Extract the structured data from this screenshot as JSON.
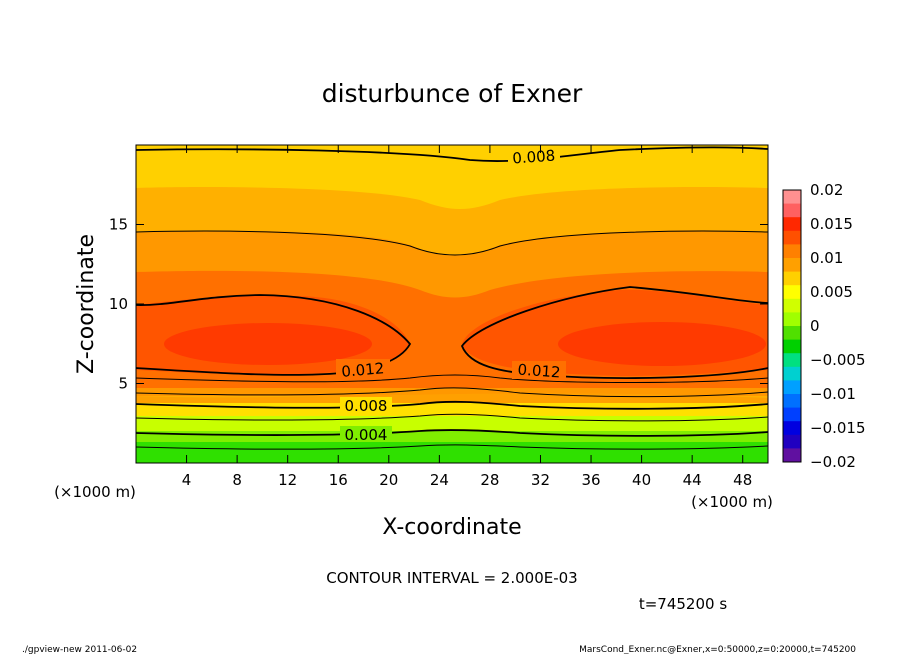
{
  "chart_data": {
    "type": "contour",
    "title": "disturbunce of Exner",
    "xlabel": "X-coordinate",
    "ylabel": "Z-coordinate",
    "x_unit": "(×1000 m)",
    "z_unit": "(×1000 m)",
    "xlim": [
      0,
      50
    ],
    "ylim": [
      0,
      20
    ],
    "x_ticks": [
      4,
      8,
      12,
      16,
      20,
      24,
      28,
      32,
      36,
      40,
      44,
      48
    ],
    "y_ticks": [
      5,
      10,
      15
    ],
    "contour_interval_text": "CONTOUR INTERVAL = 2.000E-03",
    "time_text": "t=745200 s",
    "contour_labels": [
      {
        "text": "0.008",
        "x": 32,
        "z": 19.0
      },
      {
        "text": "0.012",
        "x": 17.7,
        "z": 5.6
      },
      {
        "text": "0.012",
        "x": 31.8,
        "z": 5.5
      },
      {
        "text": "0.008",
        "x": 18.2,
        "z": 3.5
      },
      {
        "text": "0.004",
        "x": 18.2,
        "z": 1.7
      }
    ],
    "colorbar": {
      "ticks": [
        "0.02",
        "0.015",
        "0.01",
        "0.005",
        "0",
        "−0.005",
        "−0.01",
        "−0.015",
        "−0.02"
      ],
      "levels": [
        0.02,
        0.015,
        0.01,
        0.005,
        0,
        -0.005,
        -0.01,
        -0.015,
        -0.02
      ],
      "colors": [
        "#ff9090",
        "#ff6060",
        "#ff2800",
        "#ff5000",
        "#ff8000",
        "#ffa000",
        "#ffd000",
        "#ffff00",
        "#d0ff00",
        "#a0ff00",
        "#50e000",
        "#00d000",
        "#00e080",
        "#00d0d0",
        "#00a0ff",
        "#0070ff",
        "#0040ff",
        "#0000e0",
        "#2000c0",
        "#6010a0"
      ]
    }
  },
  "footer": {
    "left": "./gpview-new   2011-06-02",
    "right": "MarsCond_Exner.nc@Exner,x=0:50000,z=0:20000,t=745200"
  },
  "colors": {
    "c0002": "#2fe000",
    "c0004": "#80ee00",
    "c0006": "#c8ff00",
    "c0008": "#ffe000",
    "c0010": "#ffd000",
    "c0011": "#ffb000",
    "c0012": "#ff9800",
    "c0013": "#ff7000",
    "c0014": "#ff5500",
    "c0015": "#ff3a00"
  }
}
